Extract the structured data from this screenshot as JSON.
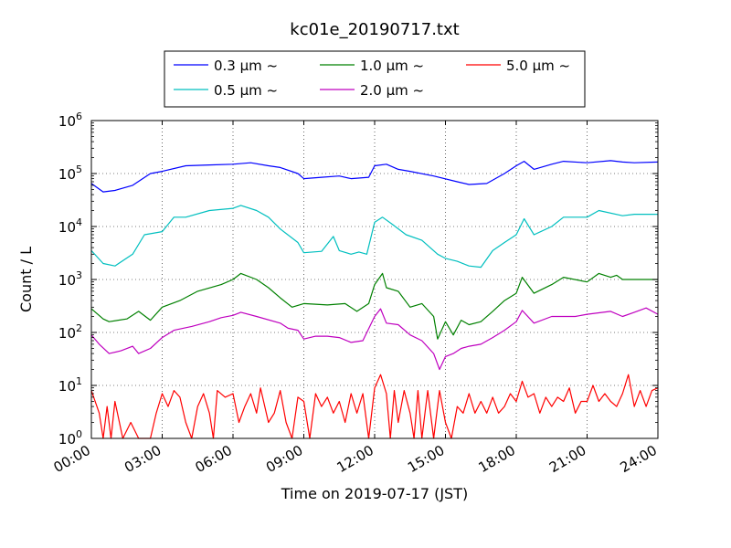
{
  "chart_data": {
    "type": "line",
    "title": "kc01e_20190717.txt",
    "xlabel": "Time on 2019-07-17 (JST)",
    "ylabel": "Count / L",
    "yscale": "log",
    "ylim": [
      1,
      1000000
    ],
    "ytick_values": [
      1,
      10,
      100,
      1000,
      10000,
      100000,
      1000000
    ],
    "ytick_labels": [
      {
        "base": "10",
        "exp": "0"
      },
      {
        "base": "10",
        "exp": "1"
      },
      {
        "base": "10",
        "exp": "2"
      },
      {
        "base": "10",
        "exp": "3"
      },
      {
        "base": "10",
        "exp": "4"
      },
      {
        "base": "10",
        "exp": "5"
      },
      {
        "base": "10",
        "exp": "6"
      }
    ],
    "xlim": [
      "00:00",
      "24:00"
    ],
    "xticks": [
      "00:00",
      "03:00",
      "06:00",
      "09:00",
      "12:00",
      "15:00",
      "18:00",
      "21:00",
      "24:00"
    ],
    "grid": true,
    "legend_position": "above plot",
    "series": [
      {
        "name": "0.3 μm ~",
        "legend_num": "0.3",
        "color": "#0000ff",
        "points": [
          [
            "00:00",
            65000
          ],
          [
            "00:30",
            45000
          ],
          [
            "01:00",
            48000
          ],
          [
            "01:45",
            60000
          ],
          [
            "02:30",
            100000
          ],
          [
            "03:00",
            110000
          ],
          [
            "04:00",
            140000
          ],
          [
            "05:00",
            145000
          ],
          [
            "06:00",
            150000
          ],
          [
            "06:45",
            160000
          ],
          [
            "07:30",
            140000
          ],
          [
            "08:00",
            130000
          ],
          [
            "08:45",
            100000
          ],
          [
            "09:00",
            80000
          ],
          [
            "09:45",
            85000
          ],
          [
            "10:30",
            90000
          ],
          [
            "11:00",
            80000
          ],
          [
            "11:45",
            85000
          ],
          [
            "12:00",
            140000
          ],
          [
            "12:30",
            150000
          ],
          [
            "13:00",
            120000
          ],
          [
            "13:30",
            110000
          ],
          [
            "14:30",
            90000
          ],
          [
            "15:30",
            70000
          ],
          [
            "16:00",
            62000
          ],
          [
            "16:45",
            65000
          ],
          [
            "17:30",
            100000
          ],
          [
            "18:00",
            140000
          ],
          [
            "18:20",
            170000
          ],
          [
            "18:45",
            120000
          ],
          [
            "19:30",
            150000
          ],
          [
            "20:00",
            170000
          ],
          [
            "21:00",
            160000
          ],
          [
            "22:00",
            175000
          ],
          [
            "22:30",
            165000
          ],
          [
            "23:00",
            160000
          ],
          [
            "24:00",
            165000
          ]
        ]
      },
      {
        "name": "0.5 μm ~",
        "legend_num": "0.5",
        "color": "#00bfbf",
        "points": [
          [
            "00:00",
            3500
          ],
          [
            "00:30",
            2000
          ],
          [
            "01:00",
            1800
          ],
          [
            "01:45",
            3000
          ],
          [
            "02:15",
            7000
          ],
          [
            "03:00",
            8000
          ],
          [
            "03:30",
            15000
          ],
          [
            "04:00",
            15000
          ],
          [
            "05:00",
            20000
          ],
          [
            "06:00",
            22000
          ],
          [
            "06:20",
            25000
          ],
          [
            "07:00",
            20000
          ],
          [
            "07:30",
            15000
          ],
          [
            "08:00",
            9000
          ],
          [
            "08:45",
            5000
          ],
          [
            "09:00",
            3200
          ],
          [
            "09:45",
            3400
          ],
          [
            "10:15",
            6500
          ],
          [
            "10:30",
            3500
          ],
          [
            "11:00",
            3000
          ],
          [
            "11:20",
            3300
          ],
          [
            "11:40",
            3000
          ],
          [
            "12:00",
            12000
          ],
          [
            "12:20",
            15000
          ],
          [
            "12:45",
            11000
          ],
          [
            "13:20",
            7000
          ],
          [
            "14:00",
            5500
          ],
          [
            "14:40",
            3000
          ],
          [
            "15:00",
            2500
          ],
          [
            "15:30",
            2200
          ],
          [
            "16:00",
            1800
          ],
          [
            "16:30",
            1700
          ],
          [
            "17:00",
            3500
          ],
          [
            "17:30",
            5000
          ],
          [
            "18:00",
            7000
          ],
          [
            "18:20",
            14000
          ],
          [
            "18:45",
            7000
          ],
          [
            "19:30",
            10000
          ],
          [
            "20:00",
            15000
          ],
          [
            "21:00",
            15000
          ],
          [
            "21:30",
            20000
          ],
          [
            "22:30",
            16000
          ],
          [
            "23:00",
            17000
          ],
          [
            "24:00",
            17000
          ]
        ]
      },
      {
        "name": "1.0 μm ~",
        "legend_num": "1.0",
        "color": "#008000",
        "points": [
          [
            "00:00",
            280
          ],
          [
            "00:30",
            180
          ],
          [
            "00:45",
            160
          ],
          [
            "01:30",
            180
          ],
          [
            "02:00",
            250
          ],
          [
            "02:30",
            170
          ],
          [
            "03:00",
            300
          ],
          [
            "03:45",
            400
          ],
          [
            "04:30",
            600
          ],
          [
            "05:30",
            800
          ],
          [
            "06:00",
            1000
          ],
          [
            "06:20",
            1300
          ],
          [
            "07:00",
            1000
          ],
          [
            "07:30",
            700
          ],
          [
            "08:00",
            450
          ],
          [
            "08:30",
            300
          ],
          [
            "09:00",
            350
          ],
          [
            "10:00",
            330
          ],
          [
            "10:45",
            350
          ],
          [
            "11:15",
            250
          ],
          [
            "11:45",
            350
          ],
          [
            "12:00",
            800
          ],
          [
            "12:20",
            1300
          ],
          [
            "12:30",
            700
          ],
          [
            "13:00",
            600
          ],
          [
            "13:30",
            300
          ],
          [
            "14:00",
            350
          ],
          [
            "14:30",
            200
          ],
          [
            "14:40",
            75
          ],
          [
            "15:00",
            160
          ],
          [
            "15:20",
            90
          ],
          [
            "15:40",
            170
          ],
          [
            "16:00",
            140
          ],
          [
            "16:30",
            160
          ],
          [
            "17:00",
            250
          ],
          [
            "17:30",
            400
          ],
          [
            "18:00",
            550
          ],
          [
            "18:15",
            1100
          ],
          [
            "18:45",
            550
          ],
          [
            "19:30",
            800
          ],
          [
            "20:00",
            1100
          ],
          [
            "21:00",
            900
          ],
          [
            "21:30",
            1300
          ],
          [
            "22:00",
            1100
          ],
          [
            "22:15",
            1200
          ],
          [
            "22:30",
            1000
          ],
          [
            "23:00",
            1000
          ],
          [
            "24:00",
            1000
          ]
        ]
      },
      {
        "name": "2.0 μm ~",
        "legend_num": "2.0",
        "color": "#bf00bf",
        "points": [
          [
            "00:00",
            90
          ],
          [
            "00:20",
            60
          ],
          [
            "00:45",
            40
          ],
          [
            "01:15",
            45
          ],
          [
            "01:45",
            55
          ],
          [
            "02:00",
            40
          ],
          [
            "02:30",
            50
          ],
          [
            "03:00",
            80
          ],
          [
            "03:30",
            110
          ],
          [
            "04:15",
            130
          ],
          [
            "05:00",
            160
          ],
          [
            "05:30",
            190
          ],
          [
            "06:00",
            210
          ],
          [
            "06:20",
            240
          ],
          [
            "07:00",
            200
          ],
          [
            "08:00",
            150
          ],
          [
            "08:20",
            120
          ],
          [
            "08:45",
            110
          ],
          [
            "09:00",
            75
          ],
          [
            "09:30",
            85
          ],
          [
            "10:00",
            85
          ],
          [
            "10:30",
            80
          ],
          [
            "11:00",
            65
          ],
          [
            "11:30",
            70
          ],
          [
            "12:00",
            200
          ],
          [
            "12:15",
            280
          ],
          [
            "12:30",
            150
          ],
          [
            "13:00",
            140
          ],
          [
            "13:30",
            90
          ],
          [
            "14:00",
            70
          ],
          [
            "14:30",
            40
          ],
          [
            "14:45",
            20
          ],
          [
            "15:00",
            35
          ],
          [
            "15:20",
            40
          ],
          [
            "15:40",
            50
          ],
          [
            "16:00",
            55
          ],
          [
            "16:30",
            60
          ],
          [
            "17:00",
            80
          ],
          [
            "17:30",
            110
          ],
          [
            "18:00",
            160
          ],
          [
            "18:15",
            260
          ],
          [
            "18:45",
            150
          ],
          [
            "19:30",
            200
          ],
          [
            "20:30",
            200
          ],
          [
            "21:00",
            220
          ],
          [
            "22:00",
            250
          ],
          [
            "22:30",
            200
          ],
          [
            "23:00",
            240
          ],
          [
            "23:30",
            290
          ],
          [
            "24:00",
            220
          ]
        ]
      },
      {
        "name": "5.0 μm ~",
        "legend_num": "5.0",
        "color": "#ff0000",
        "points": [
          [
            "00:00",
            8
          ],
          [
            "00:20",
            3
          ],
          [
            "00:30",
            1
          ],
          [
            "00:40",
            4
          ],
          [
            "00:50",
            1
          ],
          [
            "01:00",
            5
          ],
          [
            "01:20",
            1
          ],
          [
            "01:40",
            2
          ],
          [
            "02:00",
            1
          ],
          [
            "02:30",
            1
          ],
          [
            "02:45",
            3
          ],
          [
            "03:00",
            7
          ],
          [
            "03:15",
            4
          ],
          [
            "03:30",
            8
          ],
          [
            "03:45",
            6
          ],
          [
            "04:00",
            2
          ],
          [
            "04:15",
            1
          ],
          [
            "04:30",
            4
          ],
          [
            "04:45",
            7
          ],
          [
            "05:00",
            3
          ],
          [
            "05:10",
            1
          ],
          [
            "05:20",
            8
          ],
          [
            "05:40",
            6
          ],
          [
            "06:00",
            7
          ],
          [
            "06:15",
            2
          ],
          [
            "06:30",
            4
          ],
          [
            "06:45",
            7
          ],
          [
            "07:00",
            3
          ],
          [
            "07:10",
            9
          ],
          [
            "07:30",
            2
          ],
          [
            "07:45",
            3
          ],
          [
            "08:00",
            8
          ],
          [
            "08:15",
            2
          ],
          [
            "08:30",
            1
          ],
          [
            "08:45",
            6
          ],
          [
            "09:00",
            5
          ],
          [
            "09:15",
            1
          ],
          [
            "09:30",
            7
          ],
          [
            "09:45",
            4
          ],
          [
            "10:00",
            6
          ],
          [
            "10:15",
            3
          ],
          [
            "10:30",
            5
          ],
          [
            "10:45",
            2
          ],
          [
            "11:00",
            7
          ],
          [
            "11:15",
            3
          ],
          [
            "11:30",
            7
          ],
          [
            "11:45",
            1
          ],
          [
            "12:00",
            9
          ],
          [
            "12:15",
            16
          ],
          [
            "12:30",
            7
          ],
          [
            "12:40",
            1
          ],
          [
            "12:50",
            8
          ],
          [
            "13:00",
            2
          ],
          [
            "13:15",
            8
          ],
          [
            "13:30",
            3
          ],
          [
            "13:40",
            1
          ],
          [
            "13:50",
            8
          ],
          [
            "14:00",
            1
          ],
          [
            "14:15",
            8
          ],
          [
            "14:30",
            1
          ],
          [
            "14:45",
            8
          ],
          [
            "15:00",
            2
          ],
          [
            "15:15",
            1
          ],
          [
            "15:30",
            4
          ],
          [
            "15:45",
            3
          ],
          [
            "16:00",
            7
          ],
          [
            "16:15",
            3
          ],
          [
            "16:30",
            5
          ],
          [
            "16:45",
            3
          ],
          [
            "17:00",
            6
          ],
          [
            "17:15",
            3
          ],
          [
            "17:30",
            4
          ],
          [
            "17:45",
            7
          ],
          [
            "18:00",
            5
          ],
          [
            "18:15",
            12
          ],
          [
            "18:30",
            6
          ],
          [
            "18:45",
            7
          ],
          [
            "19:00",
            3
          ],
          [
            "19:15",
            6
          ],
          [
            "19:30",
            4
          ],
          [
            "19:45",
            6
          ],
          [
            "20:00",
            5
          ],
          [
            "20:15",
            9
          ],
          [
            "20:30",
            3
          ],
          [
            "20:45",
            5
          ],
          [
            "21:00",
            5
          ],
          [
            "21:15",
            10
          ],
          [
            "21:30",
            5
          ],
          [
            "21:45",
            7
          ],
          [
            "22:00",
            5
          ],
          [
            "22:15",
            4
          ],
          [
            "22:30",
            7
          ],
          [
            "22:45",
            16
          ],
          [
            "23:00",
            4
          ],
          [
            "23:15",
            8
          ],
          [
            "23:30",
            4
          ],
          [
            "23:45",
            8
          ],
          [
            "24:00",
            9
          ]
        ]
      }
    ]
  }
}
